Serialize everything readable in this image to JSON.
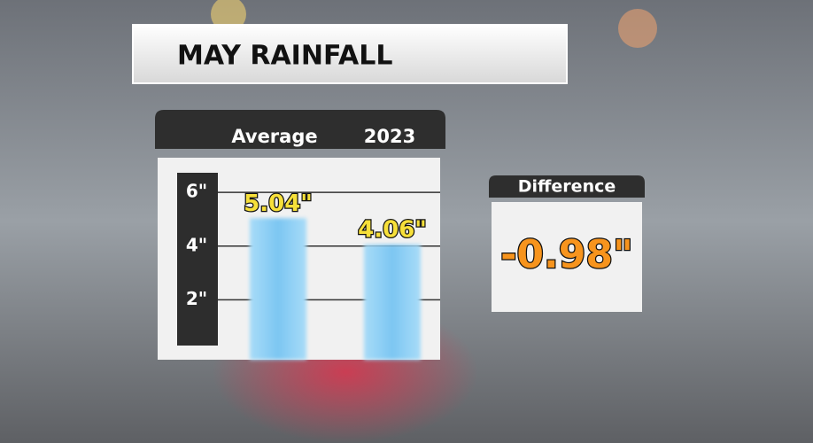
{
  "chart_data": {
    "type": "bar",
    "title": "MAY RAINFALL",
    "categories": [
      "Average",
      "2023"
    ],
    "values": [
      5.04,
      4.06
    ],
    "value_labels": [
      "5.04\"",
      "4.06\""
    ],
    "color": "#8fd0f5",
    "ylim": [
      0,
      6.6
    ],
    "yticks": [
      {
        "value": 2,
        "label": "2\""
      },
      {
        "value": 4,
        "label": "4\""
      },
      {
        "value": 6,
        "label": "6\""
      }
    ],
    "grid": true,
    "difference_label": "Difference",
    "difference_value": "-0.98\""
  }
}
